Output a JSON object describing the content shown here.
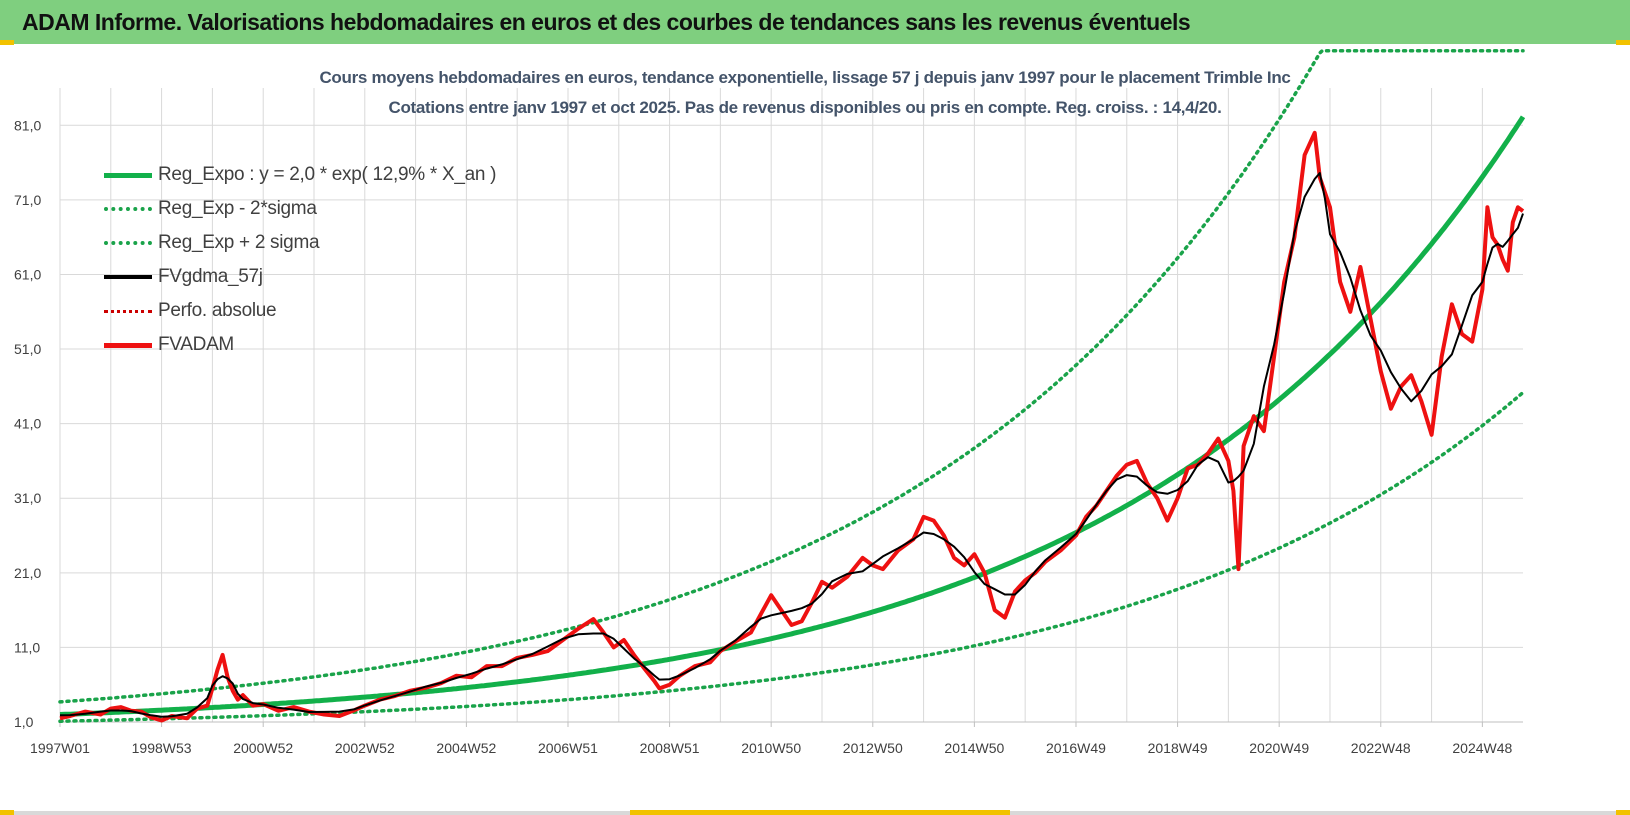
{
  "header": {
    "title": "ADAM Informe. Valorisations hebdomadaires en euros et des courbes de tendances sans les revenus éventuels"
  },
  "colors": {
    "header_bg": "#7fcf7f",
    "trend": "#12b04a",
    "band": "#1aa34a",
    "smooth": "#000000",
    "price": "#ee1111",
    "perf": "#cc0000",
    "grid": "#d9d9d9"
  },
  "chart_data": {
    "type": "line",
    "title_line1": "Cours moyens hebdomadaires en euros, tendance exponentielle, lissage 57 j depuis janv 1997 pour le placement Trimble Inc",
    "title_line2": "Cotations entre janv 1997 et oct 2025. Pas de revenus disponibles ou pris en compte. Reg. croiss. : 14,4/20.",
    "xlabel": "",
    "ylabel": "",
    "x_range": [
      1997.0,
      2025.8
    ],
    "ylim": [
      1.0,
      86.0
    ],
    "y_ticks": [
      "1,0",
      "11,0",
      "21,0",
      "31,0",
      "41,0",
      "51,0",
      "61,0",
      "71,0",
      "81,0"
    ],
    "x_ticks": [
      {
        "label": "1997W01",
        "x": 1997.0
      },
      {
        "label": "1998W53",
        "x": 1999.0
      },
      {
        "label": "2000W52",
        "x": 2001.0
      },
      {
        "label": "2002W52",
        "x": 2003.0
      },
      {
        "label": "2004W52",
        "x": 2005.0
      },
      {
        "label": "2006W51",
        "x": 2007.0
      },
      {
        "label": "2008W51",
        "x": 2009.0
      },
      {
        "label": "2010W50",
        "x": 2011.0
      },
      {
        "label": "2012W50",
        "x": 2013.0
      },
      {
        "label": "2014W50",
        "x": 2015.0
      },
      {
        "label": "2016W49",
        "x": 2017.0
      },
      {
        "label": "2018W49",
        "x": 2019.0
      },
      {
        "label": "2020W49",
        "x": 2021.0
      },
      {
        "label": "2022W48",
        "x": 2023.0
      },
      {
        "label": "2024W48",
        "x": 2025.0
      }
    ],
    "legend": [
      {
        "label": "Reg_Expo : y = 2,0 * exp( 12,9% *  X_an )",
        "style": "trend"
      },
      {
        "label": "Reg_Exp - 2*sigma",
        "style": "band"
      },
      {
        "label": "Reg_Exp + 2 sigma",
        "style": "band"
      },
      {
        "label": "FVgdma_57j",
        "style": "smooth"
      },
      {
        "label": "Perfo. absolue",
        "style": "perf"
      },
      {
        "label": "FVADAM",
        "style": "price"
      }
    ],
    "regression": {
      "a": 2.0,
      "rate": 0.129,
      "start": 1997.0
    },
    "band_factor_upper": 1.85,
    "band_factor_lower": 0.55,
    "upper_band_cap": 91.0,
    "series": [
      {
        "name": "FVADAM",
        "x": [
          1997.0,
          1997.2,
          1997.5,
          1997.8,
          1998.0,
          1998.2,
          1998.4,
          1998.6,
          1998.8,
          1999.0,
          1999.2,
          1999.5,
          1999.7,
          1999.9,
          2000.0,
          2000.1,
          2000.2,
          2000.3,
          2000.4,
          2000.5,
          2000.6,
          2000.8,
          2001.0,
          2001.3,
          2001.6,
          2001.9,
          2002.2,
          2002.5,
          2002.8,
          2003.0,
          2003.3,
          2003.6,
          2003.9,
          2004.2,
          2004.5,
          2004.8,
          2005.1,
          2005.4,
          2005.7,
          2006.0,
          2006.3,
          2006.6,
          2006.9,
          2007.2,
          2007.5,
          2007.7,
          2007.9,
          2008.1,
          2008.3,
          2008.5,
          2008.7,
          2008.8,
          2009.0,
          2009.2,
          2009.5,
          2009.8,
          2010.0,
          2010.3,
          2010.6,
          2010.8,
          2011.0,
          2011.2,
          2011.4,
          2011.6,
          2011.8,
          2012.0,
          2012.2,
          2012.5,
          2012.8,
          2013.0,
          2013.2,
          2013.5,
          2013.8,
          2014.0,
          2014.2,
          2014.4,
          2014.6,
          2014.8,
          2015.0,
          2015.2,
          2015.4,
          2015.6,
          2015.8,
          2016.0,
          2016.2,
          2016.4,
          2016.7,
          2017.0,
          2017.2,
          2017.4,
          2017.6,
          2017.8,
          2018.0,
          2018.2,
          2018.4,
          2018.6,
          2018.8,
          2019.0,
          2019.2,
          2019.4,
          2019.6,
          2019.8,
          2020.0,
          2020.1,
          2020.2,
          2020.3,
          2020.5,
          2020.7,
          2020.9,
          2021.1,
          2021.3,
          2021.5,
          2021.7,
          2021.8,
          2021.9,
          2022.0,
          2022.2,
          2022.4,
          2022.6,
          2022.8,
          2023.0,
          2023.2,
          2023.4,
          2023.6,
          2023.8,
          2024.0,
          2024.2,
          2024.4,
          2024.6,
          2024.8,
          2025.0,
          2025.1,
          2025.2,
          2025.3,
          2025.4,
          2025.5,
          2025.6,
          2025.7,
          2025.8
        ],
        "values": [
          1.5,
          1.8,
          2.4,
          2.0,
          2.8,
          3.0,
          2.5,
          2.4,
          1.6,
          1.2,
          1.8,
          1.5,
          2.8,
          3.2,
          5.5,
          8.0,
          10.0,
          7.0,
          5.2,
          4.0,
          4.6,
          3.2,
          3.4,
          2.5,
          3.0,
          2.4,
          2.0,
          1.8,
          2.6,
          3.2,
          4.0,
          4.5,
          5.2,
          5.6,
          6.2,
          7.2,
          7.0,
          8.5,
          8.5,
          9.6,
          10.0,
          10.5,
          12.0,
          13.5,
          14.8,
          13.0,
          11.0,
          12.0,
          10.0,
          8.2,
          6.5,
          5.5,
          6.0,
          7.2,
          8.5,
          9.0,
          10.5,
          11.8,
          13.0,
          15.5,
          18.0,
          16.0,
          14.0,
          14.5,
          17.0,
          19.8,
          19.0,
          20.5,
          23.0,
          22.0,
          21.5,
          24.0,
          25.5,
          28.5,
          28.0,
          26.0,
          23.0,
          22.0,
          23.5,
          21.0,
          16.0,
          15.0,
          18.5,
          20.0,
          21.0,
          22.5,
          24.0,
          26.0,
          28.5,
          30.0,
          32.0,
          34.0,
          35.5,
          36.0,
          33.0,
          31.0,
          28.0,
          31.0,
          35.0,
          35.5,
          37.0,
          39.0,
          36.0,
          32.0,
          21.5,
          38.0,
          42.0,
          40.0,
          50.0,
          60.0,
          66.0,
          77.0,
          80.0,
          74.0,
          72.0,
          70.0,
          60.0,
          56.0,
          62.0,
          55.0,
          48.0,
          43.0,
          46.0,
          47.5,
          44.0,
          39.5,
          50.0,
          57.0,
          53.0,
          52.0,
          59.0,
          70.0,
          66.0,
          65.0,
          63.0,
          61.5,
          68.0,
          70.0,
          69.5
        ]
      }
    ]
  }
}
